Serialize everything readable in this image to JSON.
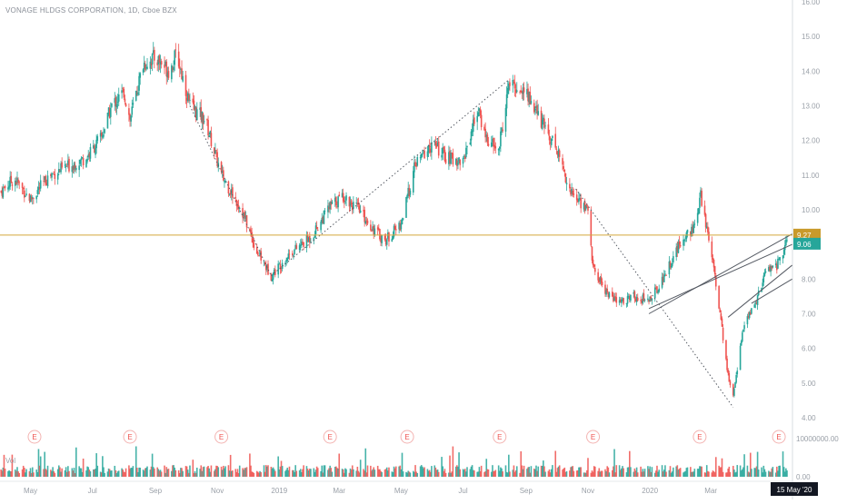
{
  "header": {
    "title": "VONAGE HLDGS CORPORATION, 1D, Cboe BZX"
  },
  "volume_label": "Vol",
  "colors": {
    "up": "#26a69a",
    "down": "#ef5350",
    "horizontal_line": "#d4a73a",
    "price_tag": "#26a69a",
    "level_tag": "#c99a2b",
    "earnings": "#ef5350"
  },
  "tags": {
    "level": "9.27",
    "last": "9.06",
    "cursor_date": "15 May '20"
  },
  "earnings_marker": "E",
  "chart_data": {
    "type": "candlestick",
    "title": "VONAGE HLDGS CORPORATION, 1D, Cboe BZX",
    "y_axis": {
      "ticks": [
        "16.00",
        "15.00",
        "14.00",
        "13.00",
        "12.00",
        "11.00",
        "10.00",
        "9.00",
        "8.00",
        "7.00",
        "6.00",
        "5.00",
        "4.00"
      ],
      "range": [
        3.8,
        16.0
      ]
    },
    "volume_axis": {
      "ticks": [
        "10000000.00",
        "0.00"
      ]
    },
    "x_axis": {
      "ticks": [
        "May",
        "Jul",
        "Sep",
        "Nov",
        "2019",
        "Mar",
        "May",
        "Jul",
        "Sep",
        "Nov",
        "2020",
        "Mar"
      ]
    },
    "x_range": [
      "2018-04-01",
      "2020-05-15"
    ],
    "horizontal_level": 9.27,
    "last_price": 9.06,
    "close_path": [
      {
        "date": "2018-04-01",
        "close": 10.5
      },
      {
        "date": "2018-04-15",
        "close": 10.9
      },
      {
        "date": "2018-05-01",
        "close": 10.3
      },
      {
        "date": "2018-05-20",
        "close": 11.0
      },
      {
        "date": "2018-06-10",
        "close": 11.3
      },
      {
        "date": "2018-06-25",
        "close": 11.5
      },
      {
        "date": "2018-07-10",
        "close": 12.1
      },
      {
        "date": "2018-07-20",
        "close": 13.0
      },
      {
        "date": "2018-08-01",
        "close": 13.4
      },
      {
        "date": "2018-08-07",
        "close": 12.6
      },
      {
        "date": "2018-08-20",
        "close": 14.2
      },
      {
        "date": "2018-09-01",
        "close": 14.4
      },
      {
        "date": "2018-09-15",
        "close": 14.0
      },
      {
        "date": "2018-09-22",
        "close": 14.5
      },
      {
        "date": "2018-10-05",
        "close": 13.0
      },
      {
        "date": "2018-10-20",
        "close": 12.6
      },
      {
        "date": "2018-11-05",
        "close": 11.0
      },
      {
        "date": "2018-11-25",
        "close": 10.0
      },
      {
        "date": "2018-12-10",
        "close": 8.8
      },
      {
        "date": "2018-12-24",
        "close": 8.1
      },
      {
        "date": "2019-01-10",
        "close": 8.7
      },
      {
        "date": "2019-02-01",
        "close": 9.2
      },
      {
        "date": "2019-02-20",
        "close": 10.1
      },
      {
        "date": "2019-03-05",
        "close": 10.4
      },
      {
        "date": "2019-03-20",
        "close": 10.0
      },
      {
        "date": "2019-04-05",
        "close": 9.4
      },
      {
        "date": "2019-04-15",
        "close": 9.1
      },
      {
        "date": "2019-05-01",
        "close": 9.6
      },
      {
        "date": "2019-05-15",
        "close": 11.3
      },
      {
        "date": "2019-06-01",
        "close": 11.9
      },
      {
        "date": "2019-06-15",
        "close": 11.5
      },
      {
        "date": "2019-07-01",
        "close": 11.4
      },
      {
        "date": "2019-07-15",
        "close": 12.9
      },
      {
        "date": "2019-07-25",
        "close": 12.0
      },
      {
        "date": "2019-08-05",
        "close": 11.7
      },
      {
        "date": "2019-08-15",
        "close": 13.6
      },
      {
        "date": "2019-09-01",
        "close": 13.4
      },
      {
        "date": "2019-09-15",
        "close": 12.6
      },
      {
        "date": "2019-10-01",
        "close": 11.8
      },
      {
        "date": "2019-10-15",
        "close": 10.5
      },
      {
        "date": "2019-11-01",
        "close": 10.0
      },
      {
        "date": "2019-11-06",
        "close": 8.3
      },
      {
        "date": "2019-11-20",
        "close": 7.6
      },
      {
        "date": "2019-12-01",
        "close": 7.3
      },
      {
        "date": "2019-12-15",
        "close": 7.5
      },
      {
        "date": "2019-12-31",
        "close": 7.4
      },
      {
        "date": "2020-01-10",
        "close": 7.8
      },
      {
        "date": "2020-01-25",
        "close": 8.7
      },
      {
        "date": "2020-02-05",
        "close": 9.3
      },
      {
        "date": "2020-02-15",
        "close": 9.5
      },
      {
        "date": "2020-02-20",
        "close": 10.4
      },
      {
        "date": "2020-02-25",
        "close": 9.6
      },
      {
        "date": "2020-03-03",
        "close": 8.6
      },
      {
        "date": "2020-03-10",
        "close": 7.0
      },
      {
        "date": "2020-03-18",
        "close": 5.2
      },
      {
        "date": "2020-03-23",
        "close": 4.6
      },
      {
        "date": "2020-04-01",
        "close": 6.5
      },
      {
        "date": "2020-04-15",
        "close": 7.4
      },
      {
        "date": "2020-04-25",
        "close": 8.3
      },
      {
        "date": "2020-05-05",
        "close": 8.4
      },
      {
        "date": "2020-05-15",
        "close": 9.06
      }
    ],
    "trendlines": [
      {
        "style": "dotted",
        "points": [
          {
            "date": "2018-10-05",
            "value": 13.0
          },
          {
            "date": "2018-12-24",
            "value": 8.1
          }
        ]
      },
      {
        "style": "dotted",
        "points": [
          {
            "date": "2018-12-24",
            "value": 8.1
          },
          {
            "date": "2019-08-15",
            "value": 13.75
          }
        ]
      },
      {
        "style": "dotted",
        "points": [
          {
            "date": "2019-10-20",
            "value": 10.6
          },
          {
            "date": "2020-03-23",
            "value": 4.3
          }
        ]
      },
      {
        "style": "solid",
        "points": [
          {
            "date": "2019-12-31",
            "value": 7.0
          },
          {
            "date": "2020-05-20",
            "value": 9.3
          }
        ]
      },
      {
        "style": "solid",
        "points": [
          {
            "date": "2019-12-31",
            "value": 7.15
          },
          {
            "date": "2020-05-20",
            "value": 9.0
          }
        ]
      },
      {
        "style": "solid",
        "points": [
          {
            "date": "2020-03-18",
            "value": 6.9
          },
          {
            "date": "2020-05-20",
            "value": 8.4
          }
        ]
      },
      {
        "style": "solid",
        "points": [
          {
            "date": "2020-04-10",
            "value": 7.3
          },
          {
            "date": "2020-05-20",
            "value": 8.0
          }
        ]
      }
    ],
    "earnings_dates": [
      "2018-05-05",
      "2018-08-07",
      "2018-11-05",
      "2019-02-20",
      "2019-05-07",
      "2019-08-06",
      "2019-11-06",
      "2020-02-19",
      "2020-05-07"
    ]
  }
}
